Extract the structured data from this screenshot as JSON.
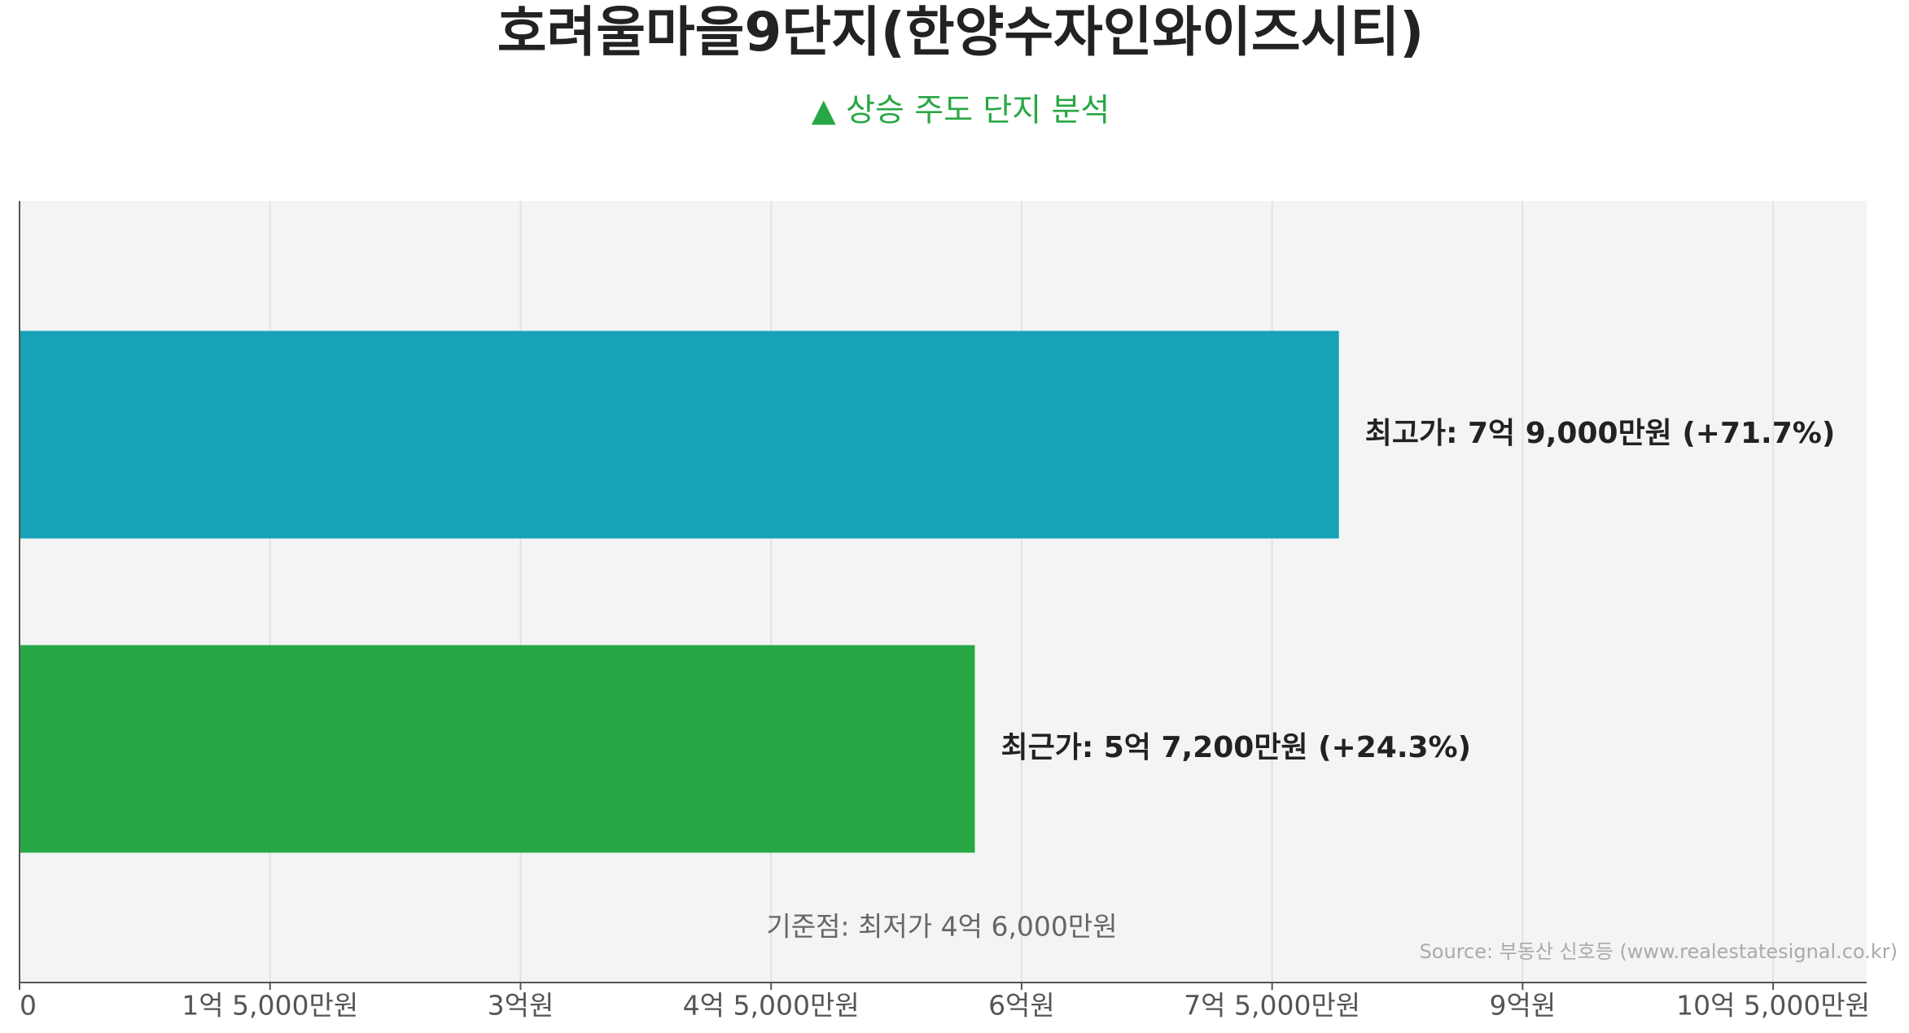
{
  "chart_data": {
    "type": "hbar",
    "title": "호려울마을9단지(한양수자인와이즈시티)",
    "subtitle": "▲ 상승 주도 단지 분석",
    "categories": [
      null,
      null
    ],
    "series": [
      {
        "values": [
          790000000,
          572000000
        ],
        "value_labels": [
          "최고가: 7억 9,000만원 (+71.7%)",
          "최근가: 5억 7,200만원 (+24.3%)"
        ],
        "colors": [
          "#17a2b8",
          "#28a745"
        ]
      }
    ],
    "xlim": [
      0,
      1106000000
    ],
    "xticks": [
      0,
      {
        "value": 150000000,
        "label": "1억 5,000만원"
      },
      {
        "value": 300000000,
        "label": "3억원"
      },
      {
        "value": 450000000,
        "label": "4억 5,000만원"
      },
      {
        "value": 600000000,
        "label": "6억원"
      },
      {
        "value": 750000000,
        "label": "7억 5,000만원"
      },
      {
        "value": 900000000,
        "label": "9억원"
      },
      {
        "value": 1050000000,
        "label": "10억 5,000만원"
      }
    ],
    "grid": true,
    "annotation": "기준점: 최저가 4억 6,000만원",
    "source": "Source: 부동산 신호등 (www.realestatesignal.co.kr)"
  }
}
